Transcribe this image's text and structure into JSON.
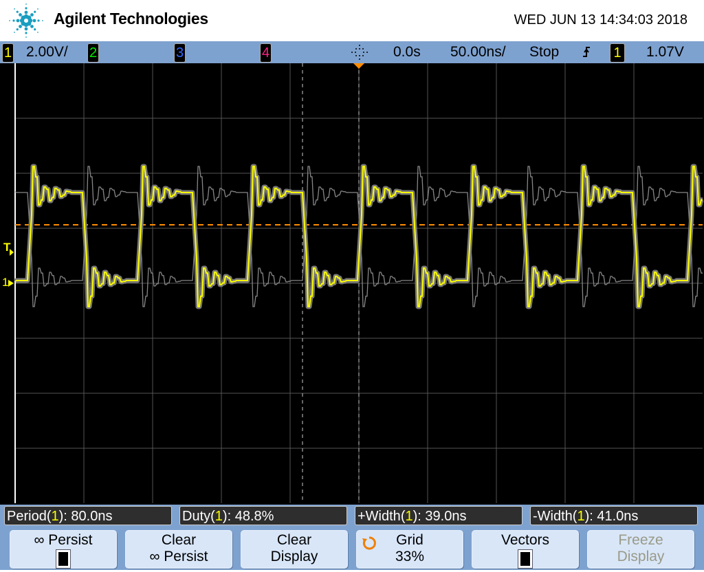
{
  "header": {
    "brand": "Agilent Technologies",
    "datetime": "WED JUN 13 14:34:03 2018"
  },
  "status_bar": {
    "channels": [
      {
        "num": "1",
        "scale": "2.00V/",
        "color": "#ffff00"
      },
      {
        "num": "2",
        "color": "#00e000"
      },
      {
        "num": "3",
        "color": "#3366ff"
      },
      {
        "num": "4",
        "color": "#ff2080"
      }
    ],
    "acq_icon": "acquisition-icon",
    "delay": "0.0s",
    "timebase": "50.00ns/",
    "run_state": "Stop",
    "trigger_edge_icon": "rising-edge-icon",
    "trigger_source": "1",
    "trigger_level": "1.07V"
  },
  "display": {
    "channel_marker": "1",
    "trigger_marker": "T",
    "trigger_level_color": "#ff8c00",
    "trace_color": "#ffff00"
  },
  "measurements": [
    {
      "name": "Period",
      "src": "1",
      "value": ": 80.0ns"
    },
    {
      "name": "Duty",
      "src": "1",
      "value": ": 48.8%"
    },
    {
      "name": "+Width",
      "src": "1",
      "value": ": 39.0ns"
    },
    {
      "name": "-Width",
      "src": "1",
      "value": ": 41.0ns"
    }
  ],
  "softkeys": [
    {
      "line1": "∞ Persist",
      "checkbox": true
    },
    {
      "line1": "Clear",
      "line2": "∞ Persist"
    },
    {
      "line1": "Clear",
      "line2": "Display"
    },
    {
      "line1": "Grid",
      "line2": "33%",
      "icon": "rotate-knob-icon"
    },
    {
      "line1": "Vectors",
      "checkbox": true
    },
    {
      "line1": "Freeze",
      "line2": "Display",
      "disabled": true
    }
  ]
}
